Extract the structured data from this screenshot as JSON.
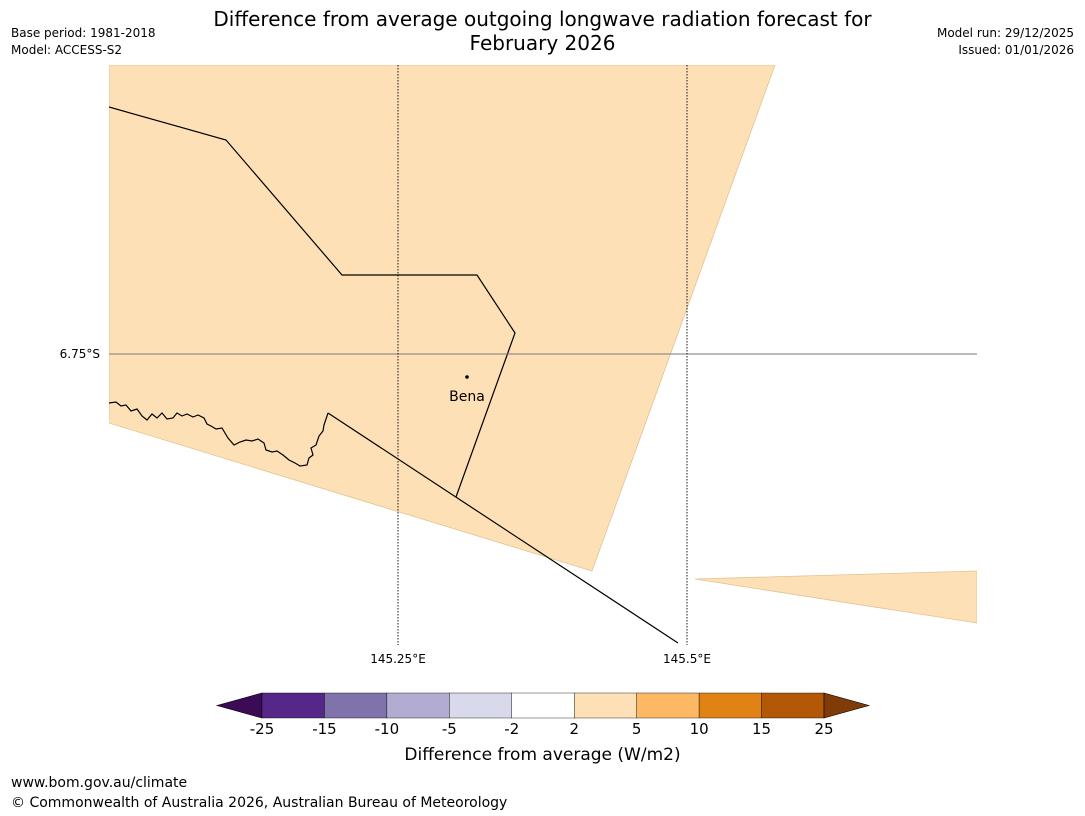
{
  "header": {
    "title_line1": "Difference from average outgoing longwave radiation forecast for",
    "title_line2": "February 2026",
    "base_period": "Base period: 1981-2018",
    "model": "Model: ACCESS-S2",
    "model_run": "Model run: 29/12/2025",
    "issued": "Issued: 01/01/2026"
  },
  "map": {
    "latitude_label": "6.75°S",
    "longitude_labels": [
      "145.25°E",
      "145.5°E"
    ],
    "place_name": "Bena",
    "fill_color": "#fde0b6"
  },
  "colorbar": {
    "title": "Difference from average (W/m2)",
    "ticks": [
      "-25",
      "-15",
      "-10",
      "-5",
      "-2",
      "2",
      "5",
      "10",
      "15",
      "25"
    ],
    "colors": [
      "#3b0b56",
      "#542788",
      "#8073ac",
      "#b2abd2",
      "#d8daeb",
      "#ffffff",
      "#fee0b6",
      "#fdb863",
      "#e08214",
      "#b35806",
      "#7f3b08"
    ]
  },
  "footer": {
    "url": "www.bom.gov.au/climate",
    "copyright": "© Commonwealth of Australia 2026, Australian Bureau of Meteorology"
  }
}
